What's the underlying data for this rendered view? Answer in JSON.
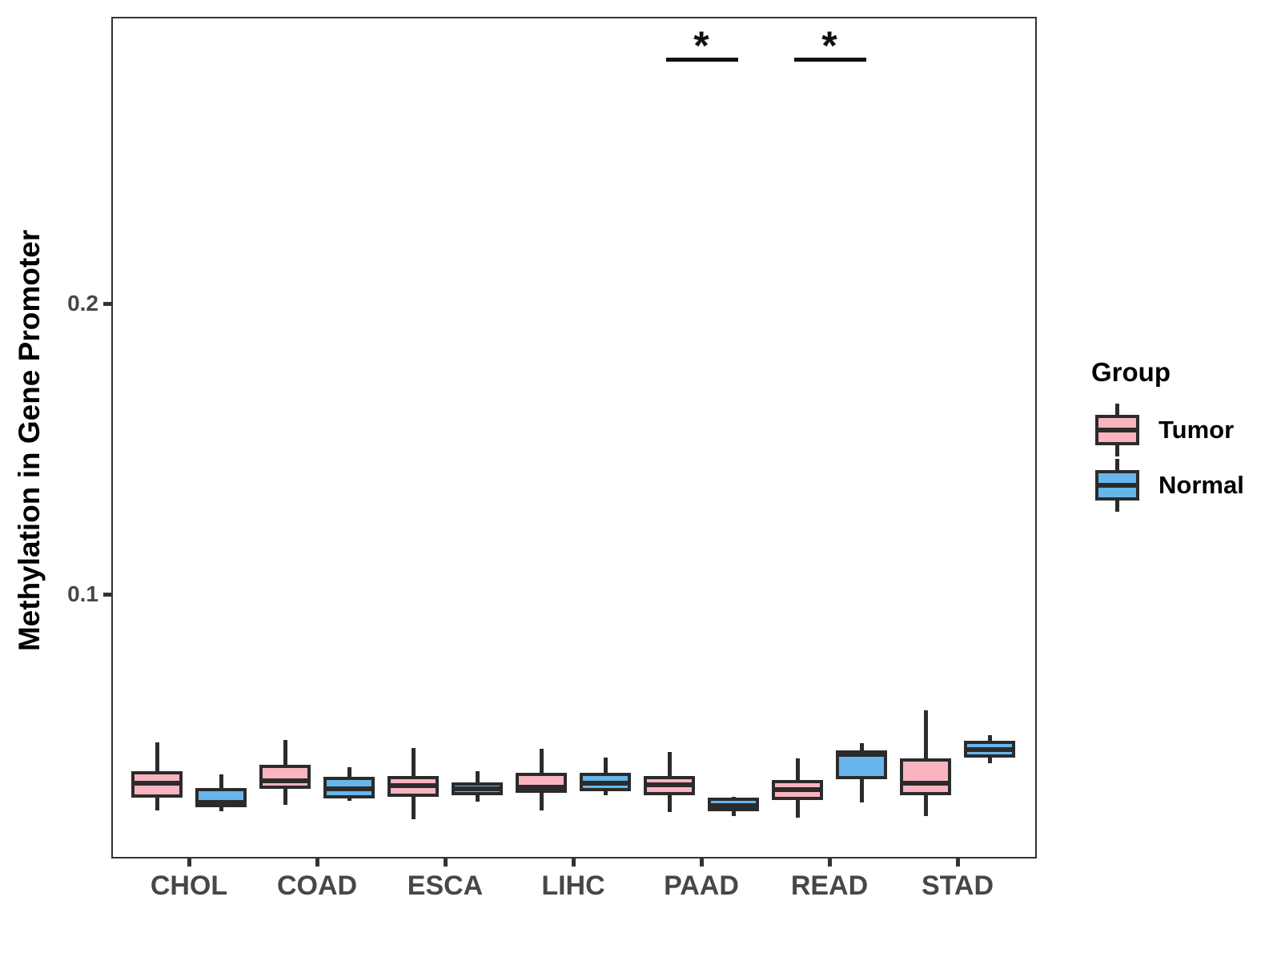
{
  "chart_data": {
    "type": "grouped_boxplot",
    "title": "",
    "xlabel": "",
    "ylabel": "Methylation in Gene Promoter",
    "categories": [
      "CHOL",
      "COAD",
      "ESCA",
      "LIHC",
      "PAAD",
      "READ",
      "STAD"
    ],
    "y_axis": {
      "ticks": [
        {
          "label": "0.1",
          "value": 0.1
        },
        {
          "label": "0.2",
          "value": 0.2
        }
      ],
      "range_approx": [
        0.01,
        0.298
      ],
      "grid": false
    },
    "legend": {
      "title": "Group",
      "position": "right",
      "entries": [
        {
          "label": "Tumor",
          "color": "#F9B4C0"
        },
        {
          "label": "Normal",
          "color": "#66B6EC"
        }
      ]
    },
    "series": [
      {
        "name": "Tumor",
        "color": "#F9B4C0",
        "boxes": [
          {
            "category": "CHOL",
            "low": 0.0256,
            "q1": 0.03,
            "median": 0.035,
            "q3": 0.0391,
            "high": 0.049
          },
          {
            "category": "COAD",
            "low": 0.0275,
            "q1": 0.0331,
            "median": 0.0358,
            "q3": 0.0413,
            "high": 0.0498
          },
          {
            "category": "ESCA",
            "low": 0.0226,
            "q1": 0.0303,
            "median": 0.0342,
            "q3": 0.0375,
            "high": 0.0471
          },
          {
            "category": "LIHC",
            "low": 0.0256,
            "q1": 0.0317,
            "median": 0.0336,
            "q3": 0.0386,
            "high": 0.0469
          },
          {
            "category": "PAAD",
            "low": 0.0251,
            "q1": 0.0309,
            "median": 0.0344,
            "q3": 0.0375,
            "high": 0.0458
          },
          {
            "category": "READ",
            "low": 0.0231,
            "q1": 0.0292,
            "median": 0.0328,
            "q3": 0.0361,
            "high": 0.0435
          },
          {
            "category": "STAD",
            "low": 0.0237,
            "q1": 0.0309,
            "median": 0.035,
            "q3": 0.0435,
            "high": 0.06
          }
        ]
      },
      {
        "name": "Normal",
        "color": "#66B6EC",
        "boxes": [
          {
            "category": "CHOL",
            "low": 0.0253,
            "q1": 0.0267,
            "median": 0.0284,
            "q3": 0.0333,
            "high": 0.038
          },
          {
            "category": "COAD",
            "low": 0.0289,
            "q1": 0.0297,
            "median": 0.0331,
            "q3": 0.0372,
            "high": 0.0405
          },
          {
            "category": "ESCA",
            "low": 0.0286,
            "q1": 0.0309,
            "median": 0.0331,
            "q3": 0.0353,
            "high": 0.0391
          },
          {
            "category": "LIHC",
            "low": 0.0309,
            "q1": 0.0322,
            "median": 0.035,
            "q3": 0.0386,
            "high": 0.0438
          },
          {
            "category": "PAAD",
            "low": 0.0237,
            "q1": 0.0253,
            "median": 0.0272,
            "q3": 0.03,
            "high": 0.0302
          },
          {
            "category": "READ",
            "low": 0.0284,
            "q1": 0.0364,
            "median": 0.0449,
            "q3": 0.0463,
            "high": 0.0487
          },
          {
            "category": "STAD",
            "low": 0.0419,
            "q1": 0.0438,
            "median": 0.0466,
            "q3": 0.0496,
            "high": 0.0515
          }
        ]
      }
    ],
    "significance": [
      {
        "category": "PAAD",
        "label": "*"
      },
      {
        "category": "READ",
        "label": "*"
      }
    ]
  },
  "colors": {
    "box_outline": "#2b2b2b",
    "panel_border": "#333333",
    "axis_text": "#474747",
    "tumor_fill": "#F9B4C0",
    "normal_fill": "#66B6EC"
  }
}
